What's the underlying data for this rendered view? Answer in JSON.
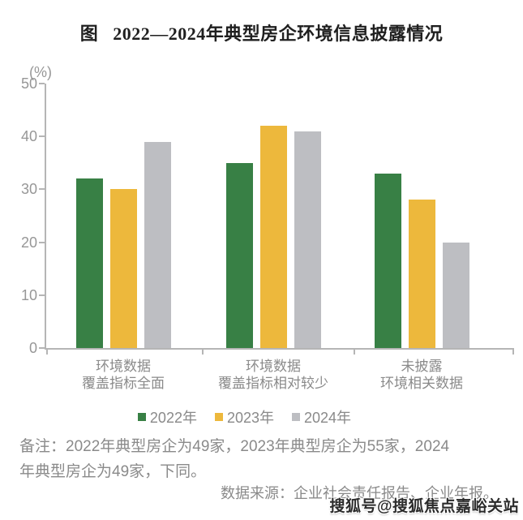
{
  "title": {
    "prefix": "图",
    "text": "2022—2024年典型房企环境信息披露情况"
  },
  "chart_data": {
    "type": "bar",
    "title": "图 2022—2024年典型房企环境信息披露情况",
    "unit_label": "(%)",
    "categories": [
      [
        "环境数据",
        "覆盖指标全面"
      ],
      [
        "环境数据",
        "覆盖指标相对较少"
      ],
      [
        "未披露",
        "环境相关数据"
      ]
    ],
    "series": [
      {
        "name": "2022年",
        "color": "#388045",
        "values": [
          32,
          35,
          33
        ]
      },
      {
        "name": "2023年",
        "color": "#edb83c",
        "values": [
          30,
          42,
          28
        ]
      },
      {
        "name": "2024年",
        "color": "#bdbec2",
        "values": [
          39,
          41,
          20
        ]
      }
    ],
    "ylim": [
      0,
      50
    ],
    "yticks": [
      0,
      10,
      20,
      30,
      40,
      50
    ],
    "grid": false,
    "legend_position": "bottom"
  },
  "notes": {
    "remark_lines": [
      "备注：2022年典型房企为49家，2023年典型房企为55家，2024",
      "年典型房企为49家，下同。"
    ],
    "source": "数据来源：企业社会责任报告、企业年报。"
  },
  "watermark": "搜狐号@搜狐焦点嘉峪关站",
  "colors": {
    "axis": "#b5b5b5",
    "tick_text": "#979797",
    "label_text": "#8a8a8a",
    "title_text": "#1f1f1f"
  }
}
